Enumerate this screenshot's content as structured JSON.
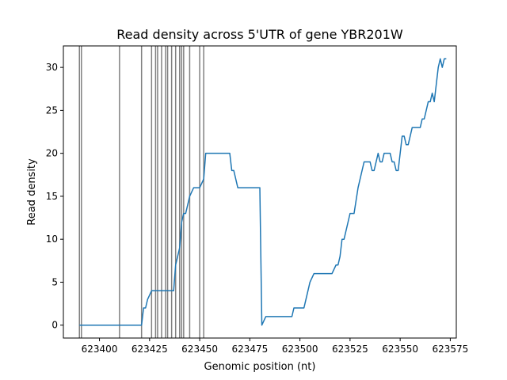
{
  "chart_data": {
    "type": "line",
    "title": "Read density across 5'UTR of gene YBR201W",
    "xlabel": "Genomic position (nt)",
    "ylabel": "Read density",
    "xlim": [
      623382,
      623578
    ],
    "ylim": [
      -1.5,
      32.5
    ],
    "x_ticks": [
      623400,
      623425,
      623450,
      623475,
      623500,
      623525,
      623550,
      623575
    ],
    "y_ticks": [
      0,
      5,
      10,
      15,
      20,
      25,
      30
    ],
    "grid": false,
    "colors": {
      "line": "#1f77b4",
      "vlines": "#808080"
    },
    "vertical_lines_x": [
      623390,
      623391,
      623410,
      623421,
      623426,
      623428,
      623429,
      623431,
      623433,
      623434,
      623436,
      623438,
      623440,
      623441,
      623442,
      623445,
      623450,
      623452
    ],
    "series": [
      {
        "x": [
          623390,
          623421,
          623422,
          623423,
          623424,
          623426,
          623437,
          623438,
          623440,
          623441,
          623442,
          623443,
          623444,
          623445,
          623447,
          623450,
          623452,
          623453,
          623454,
          623455,
          623465,
          623466,
          623467,
          623469,
          623479,
          623480,
          623481,
          623483,
          623496,
          623497,
          623502,
          623503,
          623505,
          623507,
          623516,
          623518,
          623519,
          623520,
          623521,
          623522,
          623524,
          623525,
          623527,
          623529,
          623532,
          623534,
          623535,
          623536,
          623537,
          623539,
          623540,
          623541,
          623542,
          623543,
          623545,
          623546,
          623547,
          623548,
          623549,
          623550,
          623551,
          623552,
          623553,
          623554,
          623556,
          623557,
          623559,
          623560,
          623561,
          623562,
          623563,
          623564,
          623565,
          623566,
          623567,
          623568,
          623569,
          623570,
          623571,
          623572,
          623573
        ],
        "y": [
          0,
          0,
          2,
          2,
          3,
          4,
          4,
          7,
          9,
          12,
          13,
          13,
          14,
          15,
          16,
          16,
          17,
          20,
          20,
          20,
          20,
          18,
          18,
          16,
          16,
          16,
          0,
          1,
          1,
          2,
          2,
          3,
          5,
          6,
          6,
          7,
          7,
          8,
          10,
          10,
          12,
          13,
          13,
          16,
          19,
          19,
          19,
          18,
          18,
          20,
          19,
          19,
          20,
          20,
          20,
          19,
          19,
          18,
          18,
          20,
          22,
          22,
          21,
          21,
          23,
          23,
          23,
          23,
          24,
          24,
          25,
          26,
          26,
          27,
          26,
          28,
          30,
          31,
          30,
          31,
          31
        ]
      }
    ]
  }
}
